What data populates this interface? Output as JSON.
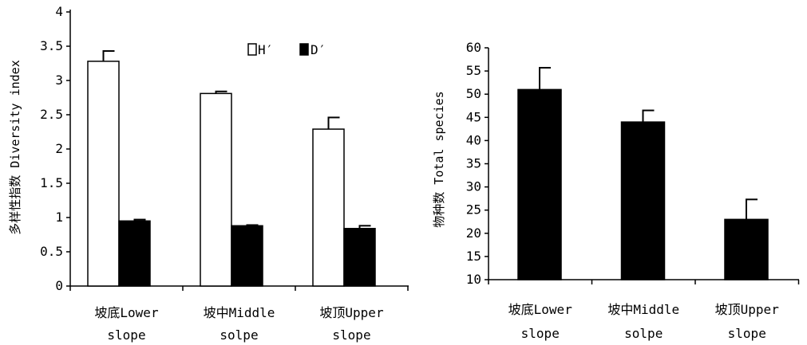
{
  "chart_data": [
    {
      "type": "bar",
      "title": "",
      "xlabel": "",
      "ylabel": "多样性指数 Diversity index",
      "ylim": [
        0,
        4
      ],
      "yticks": [
        "0",
        "0.5",
        "1",
        "1.5",
        "2",
        "2.5",
        "3",
        "3.5",
        "4"
      ],
      "categories": [
        {
          "line1": "坡底Lower",
          "line2": "slope"
        },
        {
          "line1": "坡中Middle",
          "line2": "solpe"
        },
        {
          "line1": "坡顶Upper",
          "line2": "slope"
        }
      ],
      "series": [
        {
          "name": "H′",
          "fill": "#ffffff",
          "values": [
            3.28,
            2.81,
            2.29
          ],
          "errors": [
            0.15,
            0.03,
            0.17
          ]
        },
        {
          "name": "D′",
          "fill": "#000000",
          "values": [
            0.95,
            0.88,
            0.84
          ],
          "errors": [
            0.02,
            0.01,
            0.04
          ]
        }
      ],
      "legend_position": "top-right",
      "grid": false
    },
    {
      "type": "bar",
      "title": "",
      "xlabel": "",
      "ylabel": "物种数 Total species",
      "ylim": [
        10,
        60
      ],
      "yticks": [
        "10",
        "15",
        "20",
        "25",
        "30",
        "35",
        "40",
        "45",
        "50",
        "55",
        "60"
      ],
      "categories": [
        {
          "line1": "坡底Lower",
          "line2": "slope"
        },
        {
          "line1": "坡中Middle",
          "line2": "solpe"
        },
        {
          "line1": "坡顶Upper",
          "line2": "slope"
        }
      ],
      "series": [
        {
          "fill": "#000000",
          "values": [
            51.0,
            44.0,
            23.0
          ],
          "errors": [
            4.7,
            2.5,
            4.3
          ]
        }
      ],
      "grid": false
    }
  ]
}
